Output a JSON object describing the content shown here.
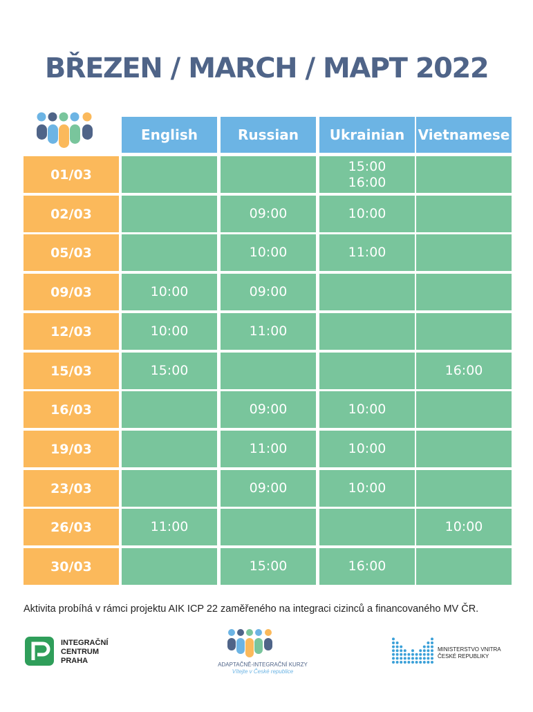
{
  "title": "BŘEZEN / MARCH / MAPT 2022",
  "languages": [
    "English",
    "Russian",
    "Ukrainian",
    "Vietnamese"
  ],
  "rows": [
    {
      "date": "01/03",
      "cells": [
        "",
        "",
        "15:00\n16:00",
        ""
      ]
    },
    {
      "date": "02/03",
      "cells": [
        "",
        "09:00",
        "10:00",
        ""
      ]
    },
    {
      "date": "05/03",
      "cells": [
        "",
        "10:00",
        "11:00",
        ""
      ]
    },
    {
      "date": "09/03",
      "cells": [
        "10:00",
        "09:00",
        "",
        ""
      ]
    },
    {
      "date": "12/03",
      "cells": [
        "10:00",
        "11:00",
        "",
        ""
      ]
    },
    {
      "date": "15/03",
      "cells": [
        "15:00",
        "",
        "",
        "16:00"
      ]
    },
    {
      "date": "16/03",
      "cells": [
        "",
        "09:00",
        "10:00",
        ""
      ]
    },
    {
      "date": "19/03",
      "cells": [
        "",
        "11:00",
        "10:00",
        ""
      ]
    },
    {
      "date": "23/03",
      "cells": [
        "",
        "09:00",
        "10:00",
        ""
      ]
    },
    {
      "date": "26/03",
      "cells": [
        "11:00",
        "",
        "",
        "10:00"
      ]
    },
    {
      "date": "30/03",
      "cells": [
        "",
        "15:00",
        "16:00",
        ""
      ]
    }
  ],
  "footer_note": "Aktivita probíhá v rámci projektu AIK ICP 22 zaměřeného na integraci cizinců a financovaného MV ČR.",
  "logos": {
    "icp": [
      "INTEGRAČNÍ",
      "CENTRUM",
      "PRAHA"
    ],
    "aik": {
      "name": "ADAPTAČNĚ-INTEGRAČNÍ KURZY",
      "tagline": "Vítejte v České republice"
    },
    "mv": [
      "MINISTERSTVO VNITRA",
      "ČESKÉ REPUBLIKY"
    ]
  },
  "colors": {
    "title": "#4f6488",
    "header": "#6cb4e4",
    "date": "#fbb95b",
    "slot": "#79c59c",
    "people": [
      "#6cb4e4",
      "#fbb95b",
      "#79c59c",
      "#4f6488"
    ]
  }
}
